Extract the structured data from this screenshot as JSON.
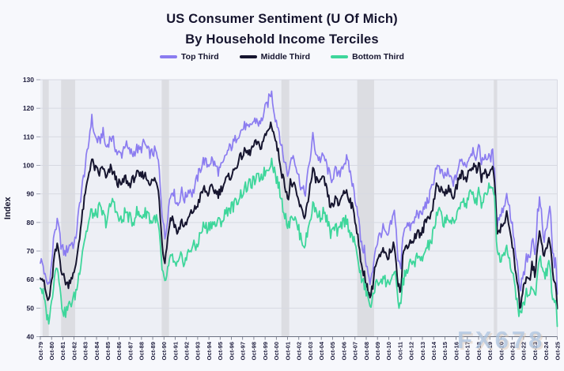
{
  "header": {
    "title_line1": "US Consumer Sentiment (U Of Mich)",
    "title_line2": "By Household Income Terciles"
  },
  "legend": [
    {
      "label": "Top Third",
      "color": "#8b7cf0"
    },
    {
      "label": "Middle Third",
      "color": "#16152f"
    },
    {
      "label": "Bottom Third",
      "color": "#3ed69b"
    }
  ],
  "watermark": {
    "text": "FX678"
  },
  "style": {
    "page_bg": "#f7f8fc",
    "plot_bg": "#edeff5",
    "band_color": "#dcdde2",
    "grid_color": "#d7d9e2",
    "axis_color": "#6a6f80",
    "tick_text_color": "#1d1c3d",
    "title_color": "#15142e",
    "render_jitter": {
      "amplitudes": [
        2.0,
        1.6,
        2.2
      ]
    }
  },
  "chart_data": {
    "type": "line",
    "title": "US Consumer Sentiment (U Of Mich) By Household Income Terciles",
    "xlabel": "",
    "ylabel": "Index",
    "ylim": [
      40,
      130
    ],
    "yticks": [
      40,
      50,
      60,
      70,
      80,
      90,
      100,
      110,
      120,
      130
    ],
    "grid": "horizontal",
    "legend_position": "top-center",
    "x_range_years": [
      1979.75,
      2025.75
    ],
    "xticks": [
      "Oct-79",
      "Oct-80",
      "Oct-81",
      "Oct-82",
      "Oct-83",
      "Oct-84",
      "Oct-85",
      "Oct-86",
      "Oct-87",
      "Oct-88",
      "Oct-89",
      "Oct-90",
      "Oct-91",
      "Oct-92",
      "Oct-93",
      "Oct-94",
      "Oct-95",
      "Oct-96",
      "Oct-97",
      "Oct-98",
      "Oct-99",
      "Oct-00",
      "Oct-01",
      "Oct-02",
      "Oct-03",
      "Oct-04",
      "Oct-05",
      "Oct-06",
      "Oct-07",
      "Oct-08",
      "Oct-09",
      "Oct-10",
      "Oct-11",
      "Oct-12",
      "Oct-13",
      "Oct-14",
      "Oct-15",
      "Oct-16",
      "Oct-17",
      "Oct-18",
      "Oct-19",
      "Oct-20",
      "Oct-21",
      "Oct-22",
      "Oct-23",
      "Oct-24",
      "Oct-25"
    ],
    "recession_bands": [
      [
        1979.95,
        1980.5
      ],
      [
        1981.6,
        1982.85
      ],
      [
        1990.55,
        1991.2
      ],
      [
        2001.2,
        2001.9
      ],
      [
        2007.95,
        2009.45
      ],
      [
        2020.1,
        2020.4
      ]
    ],
    "series_names": [
      "Top Third",
      "Middle Third",
      "Bottom Third"
    ],
    "anchor_format": "[decimal_year, top_third, middle_third, bottom_third]",
    "anchors": [
      [
        1979.75,
        67,
        62,
        58
      ],
      [
        1980.0,
        65,
        60,
        55
      ],
      [
        1980.2,
        60,
        56,
        50
      ],
      [
        1980.45,
        58,
        52,
        45.5
      ],
      [
        1980.7,
        63,
        57,
        50
      ],
      [
        1981.0,
        77,
        68,
        62
      ],
      [
        1981.3,
        80,
        72,
        66
      ],
      [
        1981.6,
        72,
        64,
        52
      ],
      [
        1981.9,
        69,
        60,
        48
      ],
      [
        1982.2,
        71,
        58,
        50
      ],
      [
        1982.5,
        73,
        61,
        52
      ],
      [
        1982.8,
        72,
        62,
        54
      ],
      [
        1983.0,
        78,
        68,
        57
      ],
      [
        1983.3,
        88,
        77,
        65
      ],
      [
        1983.6,
        96,
        86,
        73
      ],
      [
        1984.0,
        106,
        96,
        79
      ],
      [
        1984.3,
        117,
        102,
        84
      ],
      [
        1984.6,
        110,
        99,
        82
      ],
      [
        1985.0,
        108,
        97,
        85
      ],
      [
        1985.3,
        112,
        100,
        83
      ],
      [
        1985.6,
        106,
        95,
        80
      ],
      [
        1986.0,
        110,
        99,
        86
      ],
      [
        1986.3,
        108,
        97,
        88
      ],
      [
        1986.6,
        104,
        94,
        82
      ],
      [
        1987.0,
        104,
        93,
        80
      ],
      [
        1987.3,
        108,
        96,
        84
      ],
      [
        1987.6,
        105,
        93,
        82
      ],
      [
        1988.0,
        104,
        95,
        80
      ],
      [
        1988.3,
        106,
        97,
        84
      ],
      [
        1988.6,
        105,
        96,
        82
      ],
      [
        1989.0,
        108,
        97,
        83
      ],
      [
        1989.3,
        105,
        95,
        84
      ],
      [
        1989.6,
        104,
        94,
        80
      ],
      [
        1990.0,
        105,
        95,
        82
      ],
      [
        1990.3,
        100,
        90,
        78
      ],
      [
        1990.6,
        83,
        72,
        62
      ],
      [
        1990.85,
        74,
        66,
        58
      ],
      [
        1991.0,
        80,
        72,
        62
      ],
      [
        1991.25,
        88,
        80,
        66
      ],
      [
        1991.5,
        92,
        82,
        68
      ],
      [
        1991.8,
        88,
        78,
        64
      ],
      [
        1992.0,
        86,
        76,
        65
      ],
      [
        1992.3,
        91,
        81,
        68
      ],
      [
        1992.6,
        88,
        78,
        66
      ],
      [
        1993.0,
        92,
        82,
        70
      ],
      [
        1993.3,
        90,
        84,
        72
      ],
      [
        1993.6,
        94,
        85,
        71
      ],
      [
        1994.0,
        99,
        89,
        76
      ],
      [
        1994.3,
        102,
        92,
        79
      ],
      [
        1994.6,
        100,
        90,
        78
      ],
      [
        1995.0,
        102,
        92,
        80
      ],
      [
        1995.3,
        100,
        91,
        79
      ],
      [
        1995.6,
        98,
        90,
        80
      ],
      [
        1996.0,
        100,
        93,
        81
      ],
      [
        1996.3,
        104,
        95,
        84
      ],
      [
        1996.6,
        106,
        96,
        85
      ],
      [
        1997.0,
        108,
        98,
        86
      ],
      [
        1997.3,
        111,
        101,
        88
      ],
      [
        1997.6,
        112,
        103,
        90
      ],
      [
        1998.0,
        114,
        105,
        92
      ],
      [
        1998.3,
        112,
        104,
        93
      ],
      [
        1998.6,
        115,
        106,
        94
      ],
      [
        1999.0,
        116,
        108,
        95
      ],
      [
        1999.3,
        114,
        106,
        96
      ],
      [
        1999.6,
        118,
        109,
        97
      ],
      [
        2000.0,
        122,
        112,
        99
      ],
      [
        2000.3,
        126,
        115,
        102
      ],
      [
        2000.6,
        118,
        110,
        98
      ],
      [
        2001.0,
        112,
        103,
        92
      ],
      [
        2001.3,
        104,
        96,
        86
      ],
      [
        2001.6,
        100,
        92,
        82
      ],
      [
        2001.85,
        96,
        88,
        78
      ],
      [
        2002.0,
        102,
        94,
        83
      ],
      [
        2002.3,
        104,
        93,
        82
      ],
      [
        2002.6,
        98,
        89,
        79
      ],
      [
        2003.0,
        92,
        84,
        74
      ],
      [
        2003.3,
        90,
        82,
        72
      ],
      [
        2003.6,
        98,
        89,
        78
      ],
      [
        2004.0,
        110,
        98,
        86
      ],
      [
        2004.3,
        104,
        95,
        84
      ],
      [
        2004.6,
        102,
        94,
        82
      ],
      [
        2005.0,
        103,
        95,
        84
      ],
      [
        2005.3,
        99,
        90,
        80
      ],
      [
        2005.6,
        95,
        85,
        76
      ],
      [
        2006.0,
        98,
        88,
        78
      ],
      [
        2006.3,
        96,
        86,
        76
      ],
      [
        2006.6,
        100,
        90,
        80
      ],
      [
        2007.0,
        102,
        91,
        81
      ],
      [
        2007.3,
        98,
        88,
        77
      ],
      [
        2007.6,
        92,
        84,
        74
      ],
      [
        2008.0,
        84,
        76,
        68
      ],
      [
        2008.3,
        72,
        64,
        60
      ],
      [
        2008.6,
        70,
        62,
        58
      ],
      [
        2008.9,
        62,
        56,
        53
      ],
      [
        2009.1,
        58,
        54,
        51
      ],
      [
        2009.3,
        62,
        57,
        53
      ],
      [
        2009.5,
        70,
        64,
        57
      ],
      [
        2009.8,
        74,
        67,
        59
      ],
      [
        2010.0,
        76,
        68,
        60
      ],
      [
        2010.3,
        78,
        70,
        61
      ],
      [
        2010.6,
        74,
        67,
        58
      ],
      [
        2011.0,
        80,
        71,
        61
      ],
      [
        2011.3,
        84,
        72,
        62
      ],
      [
        2011.6,
        66,
        58,
        51
      ],
      [
        2011.85,
        64,
        56,
        52
      ],
      [
        2012.0,
        76,
        68,
        59
      ],
      [
        2012.3,
        80,
        72,
        63
      ],
      [
        2012.6,
        78,
        73,
        65
      ],
      [
        2013.0,
        80,
        74,
        66
      ],
      [
        2013.3,
        84,
        77,
        68
      ],
      [
        2013.6,
        82,
        75,
        66
      ],
      [
        2014.0,
        86,
        80,
        70
      ],
      [
        2014.3,
        88,
        82,
        72
      ],
      [
        2014.6,
        92,
        84,
        74
      ],
      [
        2015.0,
        100,
        93,
        82
      ],
      [
        2015.3,
        98,
        92,
        84
      ],
      [
        2015.6,
        96,
        90,
        80
      ],
      [
        2016.0,
        97,
        92,
        82
      ],
      [
        2016.3,
        95,
        90,
        80
      ],
      [
        2016.6,
        94,
        89,
        79
      ],
      [
        2017.0,
        100,
        96,
        86
      ],
      [
        2017.3,
        102,
        97,
        88
      ],
      [
        2017.6,
        100,
        95,
        86
      ],
      [
        2018.0,
        104,
        99,
        90
      ],
      [
        2018.3,
        106,
        100,
        89
      ],
      [
        2018.6,
        102,
        98,
        88
      ],
      [
        2018.85,
        108,
        102,
        92
      ],
      [
        2019.0,
        100,
        95,
        86
      ],
      [
        2019.3,
        104,
        98,
        90
      ],
      [
        2019.6,
        102,
        96,
        92
      ],
      [
        2020.0,
        104,
        100,
        94
      ],
      [
        2020.2,
        96,
        92,
        86
      ],
      [
        2020.4,
        80,
        76,
        70
      ],
      [
        2020.6,
        82,
        78,
        68
      ],
      [
        2020.85,
        84,
        78,
        68
      ],
      [
        2021.0,
        86,
        80,
        70
      ],
      [
        2021.3,
        90,
        84,
        72
      ],
      [
        2021.6,
        82,
        74,
        64
      ],
      [
        2021.85,
        76,
        70,
        60
      ],
      [
        2022.0,
        70,
        64,
        57
      ],
      [
        2022.2,
        64,
        58,
        52
      ],
      [
        2022.45,
        55,
        50,
        46.5
      ],
      [
        2022.6,
        60,
        55,
        50
      ],
      [
        2022.85,
        62,
        58,
        52
      ],
      [
        2023.0,
        68,
        62,
        56
      ],
      [
        2023.3,
        66,
        60,
        54
      ],
      [
        2023.5,
        74,
        66,
        58
      ],
      [
        2023.8,
        70,
        61,
        55
      ],
      [
        2024.0,
        84,
        72,
        62
      ],
      [
        2024.2,
        88,
        78,
        68
      ],
      [
        2024.4,
        80,
        72,
        64
      ],
      [
        2024.6,
        74,
        68,
        61
      ],
      [
        2024.8,
        78,
        71,
        63
      ],
      [
        2025.0,
        85,
        74,
        65
      ],
      [
        2025.15,
        84,
        72,
        62
      ],
      [
        2025.3,
        72,
        64,
        55
      ],
      [
        2025.5,
        64,
        58,
        50
      ],
      [
        2025.6,
        68,
        60,
        52
      ],
      [
        2025.75,
        56,
        51,
        44.5
      ]
    ]
  }
}
